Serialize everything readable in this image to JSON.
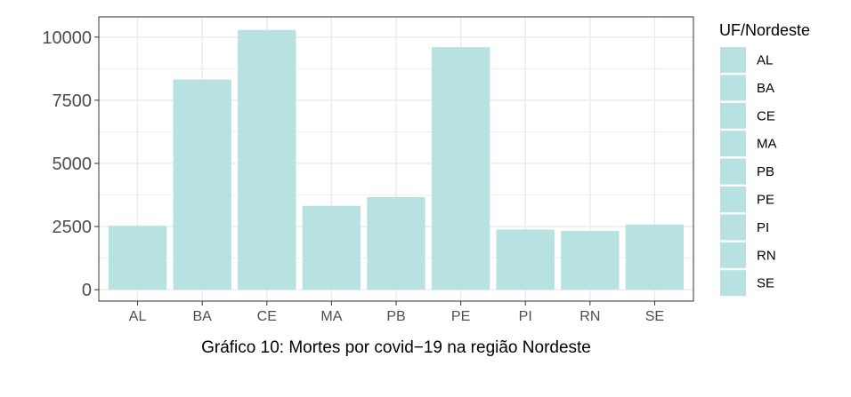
{
  "chart_data": {
    "type": "bar",
    "categories": [
      "AL",
      "BA",
      "CE",
      "MA",
      "PB",
      "PE",
      "PI",
      "RN",
      "SE"
    ],
    "values": [
      2530,
      8320,
      10280,
      3320,
      3670,
      9600,
      2380,
      2330,
      2580
    ],
    "xlabel": "Gráfico 10: Mortes por covid−19 na região Nordeste",
    "ylabel": "",
    "ylim": [
      -450,
      10800
    ],
    "yticks": [
      0,
      2500,
      5000,
      7500,
      10000
    ],
    "ytick_labels": [
      "0",
      "2500",
      "5000",
      "7500",
      "10000"
    ],
    "grid": true,
    "legend": {
      "title": "UF/Nordeste",
      "position": "right",
      "entries": [
        "AL",
        "BA",
        "CE",
        "MA",
        "PB",
        "PE",
        "PI",
        "RN",
        "SE"
      ]
    },
    "colors": {
      "bar": "#b8e1e2",
      "panel_border": "#333333",
      "grid": "#ebebeb"
    }
  }
}
